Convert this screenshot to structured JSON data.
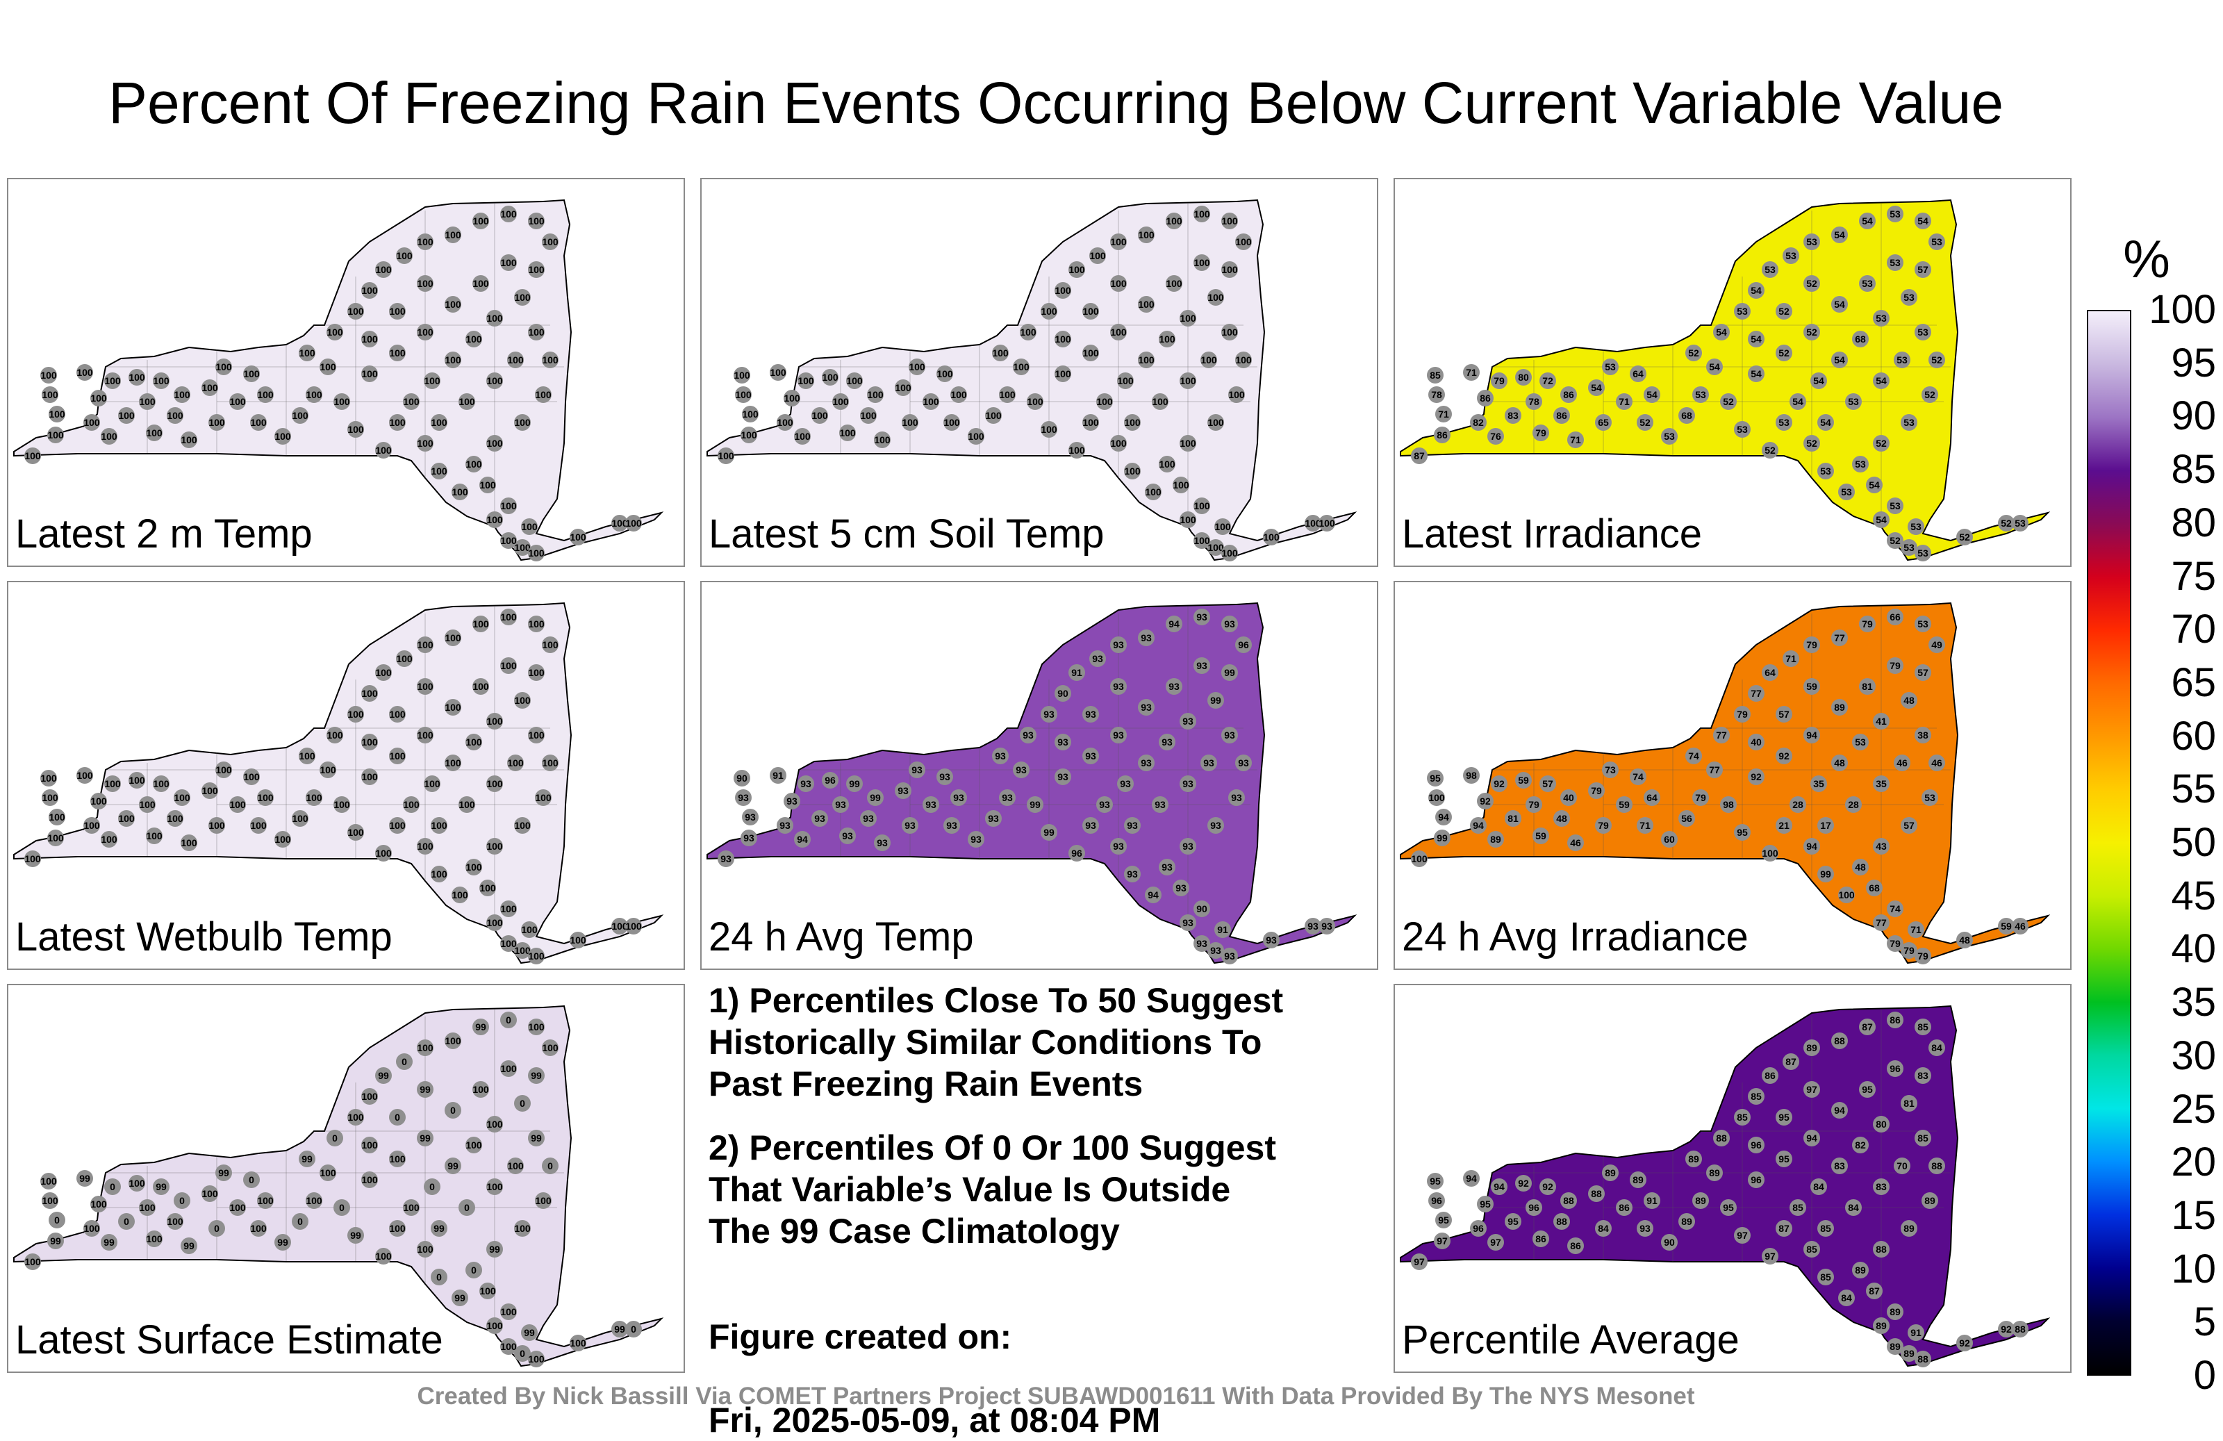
{
  "title": "Percent Of Freezing Rain Events Occurring Below Current Variable Value",
  "panels": [
    {
      "label": "Latest 2 m Temp",
      "fill": "#efe9f4",
      "values": [
        "100"
      ]
    },
    {
      "label": "Latest 5 cm Soil Temp",
      "fill": "#efe9f4",
      "values": [
        "100"
      ]
    },
    {
      "label": "Latest Irradiance",
      "fill": "#f2ee00",
      "values": [
        "87",
        "86",
        "71",
        "78",
        "85",
        "71",
        "79",
        "86",
        "82",
        "76",
        "83",
        "78",
        "80",
        "72",
        "86",
        "86",
        "79",
        "71",
        "65",
        "71",
        "54",
        "53",
        "64",
        "54",
        "52",
        "53",
        "68",
        "53",
        "54",
        "52",
        "54",
        "53",
        "54",
        "53",
        "53",
        "53",
        "54",
        "54",
        "53",
        "54",
        "53",
        "57",
        "53",
        "53",
        "68",
        "54",
        "54",
        "54",
        "53",
        "54",
        "53",
        "54",
        "53",
        "53",
        "52",
        "52",
        "53",
        "52",
        "53",
        "54",
        "53",
        "53",
        "53",
        "52",
        "54",
        "53",
        "53",
        "52",
        "52",
        "53",
        "52",
        "54",
        "52",
        "52",
        "54",
        "53",
        "53",
        "52",
        "52",
        "54",
        "52",
        "52",
        "53",
        "53",
        "54",
        "53",
        "53",
        "54"
      ]
    },
    {
      "label": "Latest Wetbulb Temp",
      "fill": "#efe9f4",
      "values": [
        "100"
      ]
    },
    {
      "label": "24 h Avg Temp",
      "fill": "#8a4ab3",
      "values": [
        "93",
        "93",
        "93",
        "93",
        "90",
        "91",
        "93",
        "93",
        "93",
        "94",
        "93",
        "93",
        "96",
        "99",
        "99",
        "93",
        "93",
        "93",
        "93",
        "93",
        "93",
        "93",
        "93",
        "93",
        "93",
        "93",
        "93",
        "93"
      ]
    },
    {
      "label": "24 h Avg Irradiance",
      "fill": "#f37e00",
      "values": [
        "100",
        "99",
        "94",
        "100",
        "95",
        "98",
        "92",
        "92",
        "94",
        "89",
        "81",
        "79",
        "59",
        "57",
        "40",
        "48",
        "59",
        "46",
        "79",
        "59",
        "79",
        "73",
        "74",
        "64",
        "71",
        "60",
        "56",
        "79",
        "77",
        "74",
        "77",
        "79",
        "77",
        "64",
        "71",
        "79",
        "77",
        "79",
        "66",
        "53",
        "49",
        "57",
        "48",
        "41",
        "53",
        "48",
        "35",
        "28",
        "21",
        "17",
        "28",
        "35",
        "46",
        "38",
        "46",
        "53",
        "57",
        "43",
        "48",
        "68",
        "74",
        "71",
        "79",
        "79",
        "77"
      ]
    },
    {
      "label": "Latest Surface Estimate",
      "fill": "#e6dcee",
      "values": [
        "100",
        "99",
        "0",
        "100"
      ]
    },
    {
      "label": "Percentile Average",
      "fill": "#5a0b8c",
      "values": [
        "97",
        "97",
        "95",
        "96",
        "95",
        "94",
        "94",
        "95",
        "96",
        "97",
        "95",
        "96",
        "92",
        "92",
        "88",
        "88",
        "86",
        "86",
        "84",
        "86",
        "88",
        "89",
        "89",
        "91",
        "93",
        "90",
        "89",
        "89",
        "89",
        "89",
        "88",
        "85",
        "85",
        "86",
        "87",
        "89",
        "88",
        "87",
        "86",
        "85",
        "84",
        "83",
        "81",
        "80",
        "82",
        "83",
        "84",
        "85",
        "87",
        "85",
        "84",
        "83",
        "70",
        "85",
        "88",
        "89",
        "89",
        "88",
        "89",
        "87",
        "89",
        "91",
        "89",
        "89",
        "89",
        "84",
        "85",
        "85"
      ]
    }
  ],
  "notes": {
    "note1": "1) Percentiles Close To 50 Suggest\nHistorically Similar Conditions To\nPast Freezing Rain Events",
    "note2": "2) Percentiles Of 0 Or 100 Suggest\nThat Variable’s Value Is Outside\nThe 99 Case Climatology",
    "created_label": "Figure created on:",
    "created_date": "Fri, 2025-05-09, at 08:04 PM"
  },
  "footer": "Created By Nick Bassill Via COMET Partners Project SUBAWD001611 With Data Provided By The NYS Mesonet",
  "colorbar": {
    "unit": "%",
    "ticks": [
      "100",
      "95",
      "90",
      "85",
      "80",
      "75",
      "70",
      "65",
      "60",
      "55",
      "50",
      "45",
      "40",
      "35",
      "30",
      "25",
      "20",
      "15",
      "10",
      "5",
      "0"
    ],
    "stops": [
      "#f4effa",
      "#c9b8e0",
      "#9c74c4",
      "#5b0d8f",
      "#8a0a55",
      "#d4001c",
      "#ff2a00",
      "#ff6a00",
      "#ff9900",
      "#ffcc00",
      "#f6f000",
      "#c8ee00",
      "#70d800",
      "#00c020",
      "#00d8a0",
      "#00e6e6",
      "#0090ff",
      "#0030e0",
      "#00008f",
      "#000030",
      "#000000"
    ]
  }
}
